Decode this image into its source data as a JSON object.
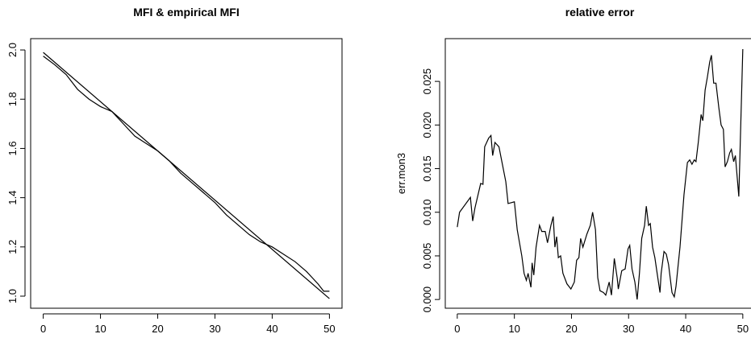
{
  "chart_data": [
    {
      "type": "line",
      "title": "MFI & empirical  MFI",
      "xlim": [
        -2.2,
        52.2
      ],
      "ylim": [
        0.951,
        2.046
      ],
      "xticks": [
        0,
        10,
        20,
        30,
        40,
        50
      ],
      "yticks": [
        {
          "value": 1.0,
          "label": "1.0"
        },
        1.2,
        1.4,
        1.6,
        1.8,
        {
          "value": 2.0,
          "label": "2.0"
        }
      ],
      "series": [
        {
          "color": "#000000",
          "x": [
            0,
            50
          ],
          "values": [
            1.99,
            0.99
          ]
        },
        {
          "color": "#000000",
          "x": [
            0,
            2,
            4,
            6,
            8,
            10,
            12,
            14,
            16,
            18,
            20,
            22,
            24,
            26,
            28,
            30,
            32,
            34,
            36,
            38,
            40,
            42,
            44,
            46,
            48,
            49,
            50
          ],
          "values": [
            1.975,
            1.94,
            1.9,
            1.84,
            1.8,
            1.77,
            1.75,
            1.7,
            1.65,
            1.62,
            1.59,
            1.55,
            1.5,
            1.46,
            1.42,
            1.38,
            1.33,
            1.29,
            1.25,
            1.22,
            1.2,
            1.17,
            1.14,
            1.1,
            1.05,
            1.02,
            1.02
          ]
        }
      ]
    },
    {
      "type": "line",
      "title": "relative error",
      "ylabel": "err.mon3",
      "xlim": [
        -2.1,
        52
      ],
      "ylim": [
        -0.001,
        0.0299
      ],
      "xticks": [
        0,
        10,
        20,
        30,
        40,
        50
      ],
      "yticks": [
        {
          "value": 0,
          "label": "0.000"
        },
        0.005,
        {
          "value": 0.01,
          "label": "0.010"
        },
        0.015,
        {
          "value": 0.02,
          "label": "0.020"
        },
        0.025
      ],
      "series": [
        {
          "color": "#000000",
          "x": [
            0,
            0.4,
            2.3,
            2.7,
            3.1,
            4.1,
            4.5,
            4.8,
            5.5,
            5.9,
            6.2,
            6.6,
            7.3,
            7.9,
            8.5,
            8.9,
            10.0,
            10.5,
            10.9,
            11.3,
            11.7,
            12.1,
            12.4,
            12.9,
            13.1,
            13.4,
            13.8,
            14.4,
            14.8,
            15.4,
            15.8,
            16.4,
            16.8,
            17.1,
            17.4,
            17.7,
            18.1,
            18.5,
            19.2,
            19.9,
            20.5,
            20.9,
            21.3,
            21.6,
            22.0,
            22.7,
            23.3,
            23.7,
            24.2,
            24.6,
            25.0,
            25.6,
            26.0,
            26.6,
            27.0,
            27.5,
            28.0,
            28.2,
            28.8,
            29.4,
            29.9,
            30.2,
            30.6,
            31.1,
            31.5,
            31.9,
            32.3,
            32.8,
            33.1,
            33.5,
            33.8,
            34.2,
            34.6,
            35.0,
            35.5,
            35.7,
            36.2,
            36.6,
            37.0,
            37.6,
            38.0,
            38.3,
            39.0,
            39.7,
            40.3,
            40.7,
            41.1,
            41.5,
            41.8,
            42.2,
            42.7,
            43.0,
            43.4,
            43.8,
            44.2,
            44.5,
            44.9,
            45.3,
            45.8,
            46.2,
            46.6,
            46.9,
            47.3,
            47.7,
            48.0,
            48.4,
            48.7,
            49.3,
            50.0
          ],
          "values": [
            0.0083,
            0.01,
            0.0117,
            0.009,
            0.0105,
            0.0133,
            0.0132,
            0.0175,
            0.0185,
            0.0188,
            0.0165,
            0.018,
            0.0175,
            0.0155,
            0.0135,
            0.011,
            0.0112,
            0.008,
            0.0065,
            0.005,
            0.003,
            0.0022,
            0.003,
            0.0014,
            0.0042,
            0.0028,
            0.006,
            0.0085,
            0.0078,
            0.0078,
            0.0065,
            0.0085,
            0.0095,
            0.006,
            0.0072,
            0.0048,
            0.005,
            0.003,
            0.0018,
            0.0012,
            0.002,
            0.0045,
            0.0048,
            0.007,
            0.006,
            0.0075,
            0.0085,
            0.01,
            0.008,
            0.0025,
            0.001,
            0.0008,
            0.0005,
            0.002,
            0.0005,
            0.0047,
            0.0025,
            0.0012,
            0.0033,
            0.0035,
            0.0058,
            0.0062,
            0.0035,
            0.002,
            0.0,
            0.003,
            0.007,
            0.0085,
            0.0107,
            0.0085,
            0.0087,
            0.006,
            0.0048,
            0.003,
            0.0008,
            0.003,
            0.0055,
            0.0052,
            0.004,
            0.0008,
            0.0003,
            0.0015,
            0.006,
            0.012,
            0.0157,
            0.016,
            0.0155,
            0.016,
            0.0158,
            0.018,
            0.0212,
            0.0205,
            0.024,
            0.0255,
            0.0272,
            0.028,
            0.0248,
            0.0248,
            0.022,
            0.02,
            0.0195,
            0.0152,
            0.0158,
            0.0168,
            0.0172,
            0.0158,
            0.0165,
            0.0118,
            0.0287
          ]
        }
      ]
    }
  ]
}
